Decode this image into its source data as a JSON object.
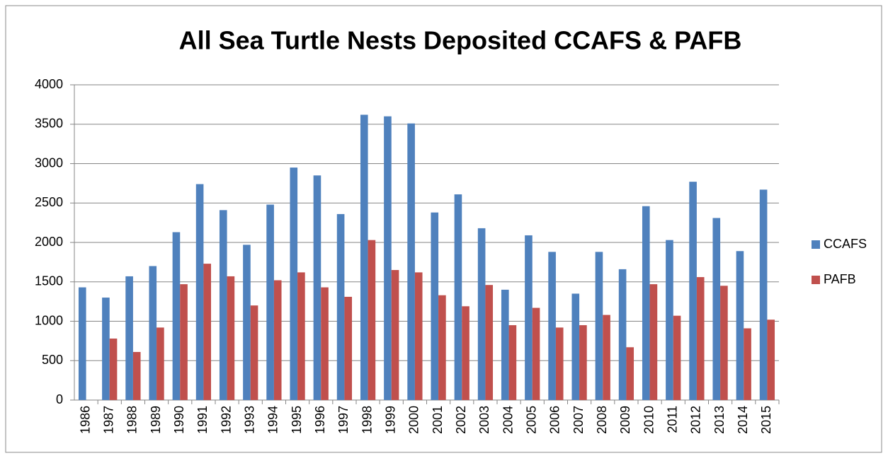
{
  "chart_data": {
    "type": "bar",
    "title": "All Sea Turtle Nests Deposited CCAFS & PAFB",
    "categories": [
      "1986",
      "1987",
      "1988",
      "1989",
      "1990",
      "1991",
      "1992",
      "1993",
      "1994",
      "1995",
      "1996",
      "1997",
      "1998",
      "1999",
      "2000",
      "2001",
      "2002",
      "2003",
      "2004",
      "2005",
      "2006",
      "2007",
      "2008",
      "2009",
      "2010",
      "2011",
      "2012",
      "2013",
      "2014",
      "2015"
    ],
    "series": [
      {
        "name": "CCAFS",
        "color": "#4f81bd",
        "values": [
          1430,
          1300,
          1570,
          1700,
          2130,
          2740,
          2410,
          1970,
          2480,
          2950,
          2850,
          2360,
          3620,
          3600,
          3510,
          2380,
          2610,
          2180,
          1400,
          2090,
          1880,
          1350,
          1880,
          1660,
          2460,
          2030,
          2770,
          2310,
          1890,
          2670
        ]
      },
      {
        "name": "PAFB",
        "color": "#c0504d",
        "values": [
          null,
          780,
          610,
          920,
          1470,
          1730,
          1570,
          1200,
          1520,
          1620,
          1430,
          1310,
          2030,
          1650,
          1620,
          1330,
          1190,
          1460,
          950,
          1170,
          920,
          950,
          1080,
          670,
          1470,
          1070,
          1560,
          1450,
          910,
          1020
        ]
      }
    ],
    "ylim": [
      0,
      4000
    ],
    "yticks": [
      0,
      500,
      1000,
      1500,
      2000,
      2500,
      3000,
      3500,
      4000
    ],
    "grid": true,
    "legend": "right"
  }
}
